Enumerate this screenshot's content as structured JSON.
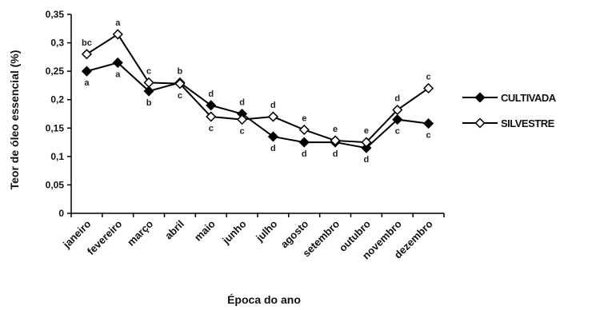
{
  "chart_data": {
    "type": "line",
    "title": "",
    "xlabel": "Época do ano",
    "ylabel": "Teor de óleo essencial (%)",
    "ylim": [
      0,
      0.35
    ],
    "yticks": [
      "0",
      "0,05",
      "0,1",
      "0,15",
      "0,2",
      "0,25",
      "0,3",
      "0,35"
    ],
    "categories": [
      "janeiro",
      "fevereiro",
      "março",
      "abril",
      "maio",
      "junho",
      "julho",
      "agosto",
      "setembro",
      "outubro",
      "novembro",
      "dezembro"
    ],
    "series": [
      {
        "name": "CULTIVADA",
        "marker": "filled-diamond",
        "color": "#000000",
        "values": [
          0.25,
          0.265,
          0.215,
          0.23,
          0.19,
          0.175,
          0.135,
          0.125,
          0.125,
          0.115,
          0.165,
          0.158
        ],
        "letters": [
          "a",
          "a",
          "b",
          "b",
          "d",
          "d",
          "d",
          "d",
          "d",
          "d",
          "c",
          "c"
        ]
      },
      {
        "name": "SILVESTRE",
        "marker": "open-diamond",
        "color": "#000000",
        "values": [
          0.28,
          0.315,
          0.23,
          0.228,
          0.17,
          0.165,
          0.17,
          0.147,
          0.128,
          0.125,
          0.182,
          0.22
        ],
        "letters": [
          "bc",
          "a",
          "c",
          "c",
          "c",
          "c",
          "d",
          "e",
          "e",
          "e",
          "d",
          "c"
        ]
      }
    ],
    "grid": false,
    "legend_position": "right"
  }
}
